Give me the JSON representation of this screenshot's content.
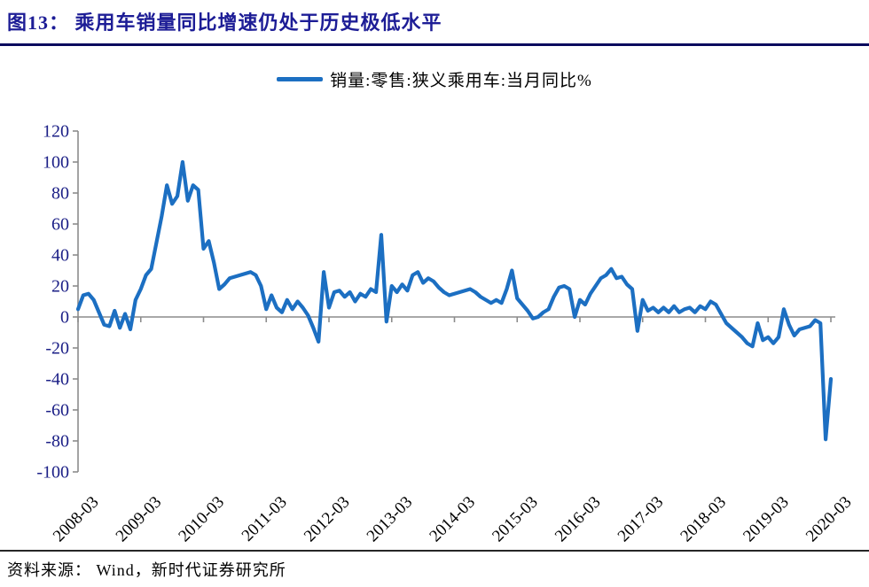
{
  "page": {
    "title": "图13：  乘用车销量同比增速仍处于历史极低水平",
    "source_label": "资料来源： Wind，新时代证券研究所"
  },
  "legend": {
    "series_label": "销量:零售:狭义乘用车:当月同比%"
  },
  "colors": {
    "line": "#1C6FC2",
    "axis": "#8C8C8C",
    "title": "#1D1D96",
    "y_label": "#1C2087",
    "x_label": "#000000",
    "title_rule": "#0A0A5E",
    "footer_rule": "#262626",
    "background": "#FFFFFF"
  },
  "chart_data": {
    "type": "line",
    "title": "",
    "series_name": "销量:零售:狭义乘用车:当月同比%",
    "x_start": "2008-03",
    "x_end": "2020-03",
    "frequency": "monthly",
    "unit": "%",
    "ylim": [
      -100,
      120
    ],
    "grid": false,
    "legend_position": "top-center",
    "y_ticks": [
      120,
      100,
      80,
      60,
      40,
      20,
      0,
      -20,
      -40,
      -60,
      -80,
      -100
    ],
    "x_tick_labels": [
      "2008-03",
      "2009-03",
      "2010-03",
      "2011-03",
      "2012-03",
      "2013-03",
      "2014-03",
      "2015-03",
      "2016-03",
      "2017-03",
      "2018-03",
      "2019-03",
      "2020-03"
    ],
    "values": [
      5,
      14,
      15,
      11,
      3,
      -5,
      -6,
      4,
      -7,
      2,
      -8,
      11,
      18,
      27,
      31,
      48,
      65,
      85,
      73,
      78,
      100,
      75,
      85,
      82,
      44,
      49,
      35,
      18,
      21,
      25,
      26,
      27,
      28,
      29,
      27,
      20,
      5,
      14,
      6,
      3,
      11,
      5,
      10,
      6,
      1,
      -7,
      -16,
      29,
      6,
      16,
      17,
      13,
      16,
      10,
      15,
      13,
      18,
      16,
      53,
      -3,
      20,
      16,
      21,
      17,
      27,
      29,
      22,
      25,
      23,
      19,
      16,
      14,
      15,
      16,
      17,
      18,
      16,
      13,
      11,
      9,
      11,
      9,
      18,
      30,
      12,
      8,
      4,
      -1,
      0,
      3,
      5,
      13,
      19,
      20,
      18,
      0,
      11,
      8,
      15,
      20,
      25,
      27,
      31,
      25,
      26,
      21,
      18,
      -9,
      11,
      4,
      6,
      3,
      6,
      3,
      7,
      3,
      5,
      6,
      3,
      7,
      5,
      10,
      8,
      2,
      -4,
      -7,
      -10,
      -13,
      -17,
      -19,
      -4,
      -15,
      -13,
      -17,
      -13,
      5,
      -5,
      -12,
      -8,
      -7,
      -6,
      -2,
      -4,
      -79,
      -40
    ]
  }
}
